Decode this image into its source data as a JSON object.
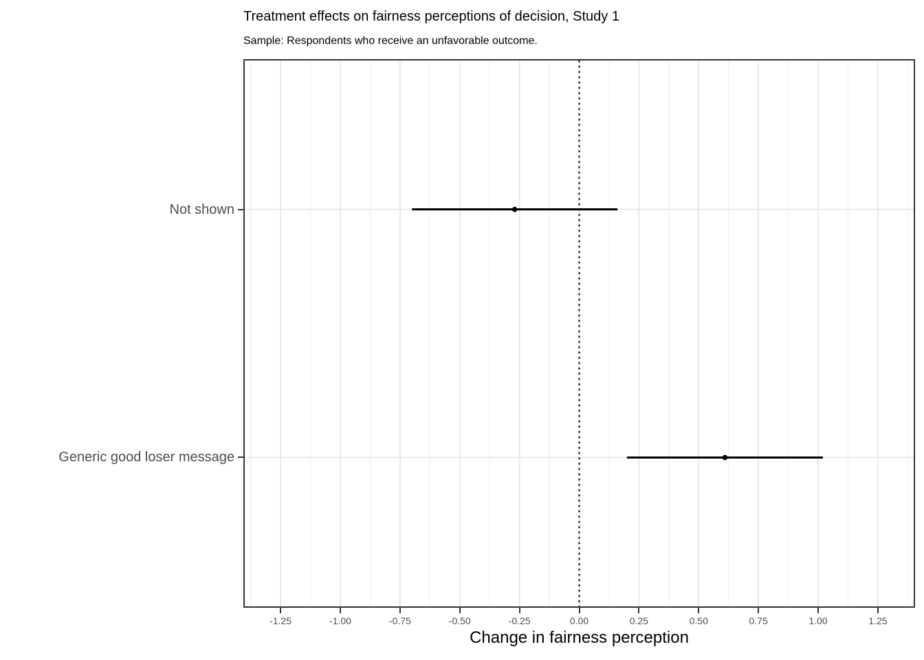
{
  "chart_data": {
    "type": "scatter",
    "subtype": "coefficient-plot-pointrange",
    "title": "Treatment effects on fairness perceptions of decision, Study 1",
    "subtitle": "Sample: Respondents who receive an unfavorable outcome.",
    "xlabel": "Change in fairness perception",
    "ylabel": "",
    "categories": [
      "Not shown",
      "Generic good loser message"
    ],
    "series": [
      {
        "name": "estimate",
        "values": [
          -0.27,
          0.61
        ]
      },
      {
        "name": "ci_lower",
        "values": [
          -0.7,
          0.2
        ]
      },
      {
        "name": "ci_upper",
        "values": [
          0.16,
          1.02
        ]
      }
    ],
    "x_ticks": [
      -1.25,
      -1.0,
      -0.75,
      -0.5,
      -0.25,
      0.0,
      0.25,
      0.5,
      0.75,
      1.0,
      1.25
    ],
    "x_tick_labels": [
      "-1.25",
      "-1.00",
      "-0.75",
      "-0.50",
      "-0.25",
      "0.00",
      "0.25",
      "0.50",
      "0.75",
      "1.00",
      "1.25"
    ],
    "xlim": [
      -1.4,
      1.4
    ],
    "minor_tick_step": 0.125,
    "reference_line_x": 0,
    "grid": true,
    "legend": "none",
    "colors": {
      "point": "#000000",
      "ci_line": "#000000",
      "reference_line": "#000000",
      "grid_major": "#e5e5e5",
      "grid_minor": "#f0f0f0",
      "panel_border": "#333333",
      "axis_tick": "#333333",
      "axis_text": "#4d4d4d",
      "title_text": "#000000"
    }
  }
}
